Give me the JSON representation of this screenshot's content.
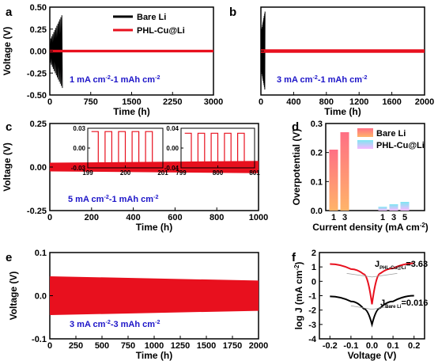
{
  "chart_data": [
    {
      "panel": "a",
      "type": "line",
      "xlabel": "Time (h)",
      "ylabel": "Voltage (V)",
      "xlim": [
        0,
        3000
      ],
      "ylim": [
        -0.5,
        0.5
      ],
      "xticks": [
        "0",
        "750",
        "1500",
        "2250",
        "3000"
      ],
      "yticks": [
        "-0.50",
        "-0.25",
        "0.00",
        "0.25",
        "0.50"
      ],
      "annotation": "1 mA cm⁻²-1 mAh cm⁻²",
      "legend": [
        "Bare Li",
        "PHL-Cu@Li"
      ],
      "legend_position": "top-right",
      "series": [
        {
          "name": "Bare Li",
          "color": "#000000",
          "x_range": [
            0,
            230
          ],
          "amplitude_start": 0.12,
          "amplitude_end": 0.42
        },
        {
          "name": "PHL-Cu@Li",
          "color": "#e8101e",
          "x_range": [
            0,
            3000
          ],
          "amplitude": 0.015
        }
      ]
    },
    {
      "panel": "b",
      "type": "line",
      "xlabel": "Time (h)",
      "ylabel": "",
      "xlim": [
        0,
        2000
      ],
      "ylim": [
        -0.5,
        0.5
      ],
      "xticks": [
        "0",
        "400",
        "800",
        "1200",
        "1600",
        "2000"
      ],
      "annotation": "3 mA cm⁻²-1 mAh cm⁻²",
      "series": [
        {
          "name": "Bare Li",
          "color": "#000000",
          "x_range": [
            0,
            50
          ],
          "amplitude_start": 0.2,
          "amplitude_end": 0.45
        },
        {
          "name": "PHL-Cu@Li",
          "color": "#e8101e",
          "x_range": [
            0,
            2000
          ],
          "amplitude": 0.02
        }
      ]
    },
    {
      "panel": "c",
      "type": "line",
      "xlabel": "Time (h)",
      "ylabel": "Voltage (V)",
      "xlim": [
        0,
        1000
      ],
      "ylim": [
        -0.25,
        0.25
      ],
      "xticks": [
        "0",
        "200",
        "400",
        "600",
        "800",
        "1000"
      ],
      "yticks": [
        "-0.25",
        "0.00",
        "0.25"
      ],
      "annotation": "5 mA cm⁻²-1 mAh cm⁻²",
      "series": [
        {
          "name": "PHL-Cu@Li",
          "color": "#e8101e",
          "x_range": [
            0,
            1000
          ],
          "amplitude_start": 0.025,
          "amplitude_end": 0.035
        }
      ],
      "insets": [
        {
          "xlim": [
            199,
            201
          ],
          "ylim": [
            -0.03,
            0.03
          ],
          "xticks": [
            "199",
            "200",
            "201"
          ],
          "yticks": [
            "-0.03",
            "0.00",
            "0.03"
          ],
          "amplitude": 0.025,
          "cycles": 5
        },
        {
          "xlim": [
            799,
            801
          ],
          "ylim": [
            -0.04,
            0.04
          ],
          "xticks": [
            "799",
            "800",
            "801"
          ],
          "yticks": [
            "-0.04",
            "0.00",
            "0.04"
          ],
          "amplitude": 0.03,
          "cycles": 5
        }
      ]
    },
    {
      "panel": "d",
      "type": "bar",
      "xlabel": "Current density (mA cm⁻²)",
      "ylabel": "Overpotential (V)",
      "ylim": [
        0,
        0.3
      ],
      "yticks": [
        "0.0",
        "0.1",
        "0.2",
        "0.3"
      ],
      "legend_position": "top-right",
      "groups": [
        {
          "name": "Bare Li",
          "categories": [
            "1",
            "3"
          ],
          "values": [
            0.21,
            0.27
          ],
          "color_top": "#ff6f84",
          "color_bottom": "#ffb469"
        },
        {
          "name": "PHL-Cu@Li",
          "categories": [
            "1",
            "3",
            "5"
          ],
          "values": [
            0.013,
            0.022,
            0.03
          ],
          "color_top": "#7fe6f2",
          "color_bottom": "#f7b8ff"
        }
      ]
    },
    {
      "panel": "e",
      "type": "line",
      "xlabel": "Time (h)",
      "ylabel": "Voltage (V)",
      "xlim": [
        0,
        2000
      ],
      "ylim": [
        -0.1,
        0.1
      ],
      "xticks": [
        "0",
        "250",
        "500",
        "750",
        "1000",
        "1250",
        "1500",
        "1750",
        "2000"
      ],
      "yticks": [
        "-0.1",
        "0.0",
        "0.1"
      ],
      "annotation": "3 mA cm⁻²-3 mAh cm⁻²",
      "series": [
        {
          "name": "PHL-Cu@Li",
          "color": "#e8101e",
          "x_range": [
            0,
            2000
          ],
          "amplitude_start": 0.045,
          "amplitude_end": 0.035
        }
      ]
    },
    {
      "panel": "f",
      "type": "line",
      "xlabel": "Voltage (V)",
      "ylabel": "log J (mA cm⁻²)",
      "xlim": [
        -0.25,
        0.25
      ],
      "ylim": [
        -4,
        2
      ],
      "xticks": [
        "-0.2",
        "-0.1",
        "0.0",
        "0.1",
        "0.2"
      ],
      "yticks": [
        "-4",
        "-3",
        "-2",
        "-1",
        "0",
        "1",
        "2"
      ],
      "series": [
        {
          "name": "PHL-Cu@Li",
          "color": "#e8101e",
          "label": "J",
          "label_sub": "PHL-Cu@Li",
          "label_value": "=3.63",
          "curve": [
            [
              -0.2,
              1.2
            ],
            [
              -0.1,
              0.85
            ],
            [
              -0.04,
              0.5
            ],
            [
              0.0,
              -1.6
            ],
            [
              0.04,
              0.55
            ],
            [
              0.1,
              0.9
            ],
            [
              0.2,
              1.25
            ]
          ]
        },
        {
          "name": "Bare Li",
          "color": "#000000",
          "label": "J",
          "label_sub": "Bare Li",
          "label_value": "=0.016",
          "curve": [
            [
              -0.2,
              -1.05
            ],
            [
              -0.1,
              -1.4
            ],
            [
              -0.04,
              -1.9
            ],
            [
              0.0,
              -3.0
            ],
            [
              0.04,
              -1.85
            ],
            [
              0.1,
              -1.4
            ],
            [
              0.2,
              -1.0
            ]
          ]
        }
      ]
    }
  ]
}
